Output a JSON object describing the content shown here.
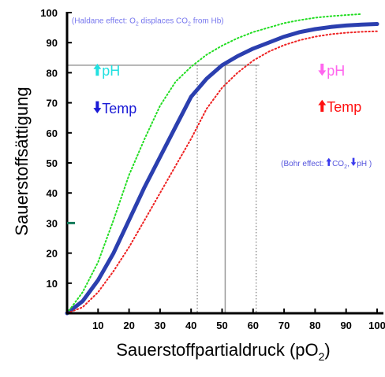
{
  "chart_data": {
    "type": "line",
    "xlabel_main": "Sauerstoffpartialdruck (pO",
    "xlabel_sub": "2",
    "xlabel_end": ")",
    "ylabel": "Sauerstoffsättigung",
    "xlim": [
      0,
      100
    ],
    "ylim": [
      0,
      100
    ],
    "x_ticks": [
      10,
      20,
      30,
      40,
      50,
      60,
      70,
      80,
      90,
      100
    ],
    "y_ticks": [
      10,
      20,
      30,
      40,
      50,
      60,
      70,
      80,
      90,
      100
    ],
    "highlighted_y_tick": 30,
    "series": [
      {
        "style": "solid",
        "color": "#2b3faf",
        "x": [
          0,
          5,
          10,
          15,
          20,
          25,
          30,
          35,
          40,
          45,
          50,
          55,
          60,
          65,
          70,
          75,
          80,
          85,
          90,
          95,
          100
        ],
        "y": [
          0,
          4,
          11,
          20,
          31,
          42,
          52,
          62,
          72,
          78,
          82.5,
          85.5,
          88,
          90,
          92,
          93.5,
          94.5,
          95.2,
          95.7,
          96,
          96.2
        ]
      },
      {
        "style": "dotted",
        "color": "#22dd22",
        "x": [
          0,
          5,
          10,
          15,
          20,
          25,
          30,
          35,
          40,
          45,
          50,
          55,
          60,
          65,
          70,
          75,
          80,
          85,
          90,
          95
        ],
        "y": [
          0,
          7,
          17,
          31,
          46,
          58,
          69,
          77,
          82,
          86,
          89,
          91.5,
          93.5,
          95,
          96.5,
          97.5,
          98.3,
          98.8,
          99.2,
          99.5
        ]
      },
      {
        "style": "dotted",
        "color": "#ee2222",
        "x": [
          0,
          5,
          10,
          15,
          20,
          25,
          30,
          35,
          40,
          45,
          50,
          55,
          60,
          65,
          70,
          75,
          80,
          85,
          90,
          95,
          100
        ],
        "y": [
          0,
          2,
          7,
          14,
          22,
          31,
          40,
          49,
          58,
          68,
          75,
          80,
          84,
          87,
          89.2,
          90.8,
          92,
          92.8,
          93.3,
          93.6,
          93.8
        ]
      }
    ],
    "reference_lines": {
      "horizontal_y": 82.5,
      "horizontal_x_range": [
        0,
        62
      ],
      "vertical_solid_x": 51,
      "vertical_dotted_x": [
        42,
        61
      ]
    },
    "annotations": [
      {
        "key": "haldane",
        "x": 1.5,
        "y": 96.5,
        "arrow": "none",
        "arrow_color": "",
        "pre": "(Haldane effect: O",
        "sub": "2",
        "post": " displaces CO",
        "sub2": "2",
        "post2": " from Hb)",
        "color": "#7777ee",
        "size": 10
      },
      {
        "key": "ph-left",
        "x": 8.5,
        "y": 79,
        "arrow": "up",
        "arrow_color": "#22e0e0",
        "pre": "pH",
        "sub": "",
        "post": "",
        "sub2": "",
        "post2": "",
        "color": "#22e0e0",
        "size": 18
      },
      {
        "key": "temp-left",
        "x": 8.5,
        "y": 66.5,
        "arrow": "down",
        "arrow_color": "#1a1ad6",
        "pre": "Temp",
        "sub": "",
        "post": "",
        "sub2": "",
        "post2": "",
        "color": "#1a1ad6",
        "size": 18
      },
      {
        "key": "ph-right",
        "x": 81,
        "y": 79,
        "arrow": "down",
        "arrow_color": "#ff66ee",
        "pre": "pH",
        "sub": "",
        "post": "",
        "sub2": "",
        "post2": "",
        "color": "#ff66ee",
        "size": 18
      },
      {
        "key": "temp-right",
        "x": 81,
        "y": 67,
        "arrow": "up",
        "arrow_color": "#ff1111",
        "pre": "Temp",
        "sub": "",
        "post": "",
        "sub2": "",
        "post2": "",
        "color": "#ff1111",
        "size": 18
      },
      {
        "key": "bohr",
        "x": 69,
        "y": 49,
        "arrow": "none",
        "arrow_color": "",
        "pre": "(Bohr effect:",
        "sub": "",
        "post": "",
        "sub2": "",
        "post2": "",
        "color": "#5555dd",
        "size": 10
      }
    ],
    "bohr_tail": [
      {
        "arrow": "up",
        "arrow_color": "#3a3aee",
        "text": "CO",
        "sub": "2"
      },
      {
        "arrow": "down",
        "arrow_color": "#3a3aee",
        "text": "pH )",
        "sub": ""
      }
    ]
  }
}
